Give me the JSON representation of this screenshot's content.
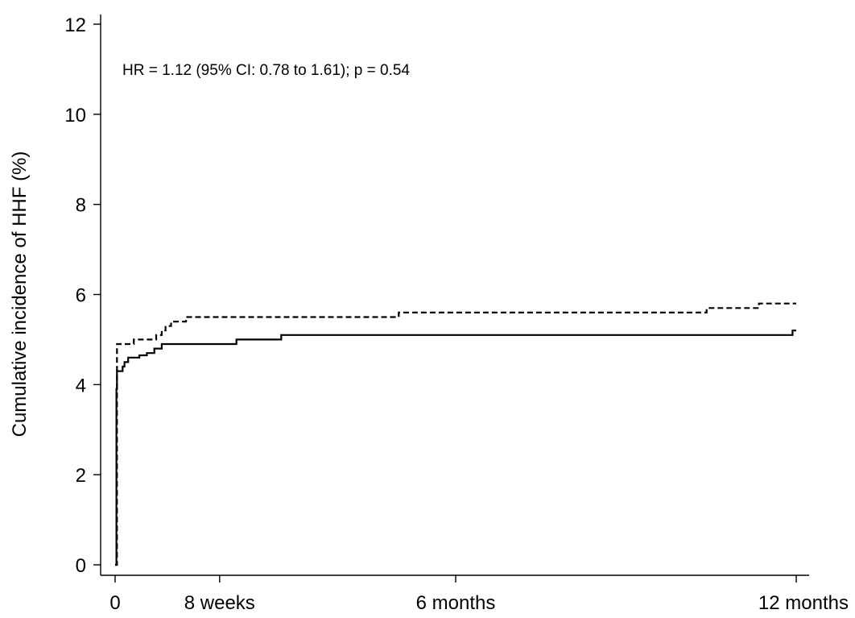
{
  "chart_data": {
    "type": "line",
    "title": "",
    "xlabel": "",
    "ylabel": "Cumulative incidence of HHF (%)",
    "annotation": "HR = 1.12 (95% CI: 0.78 to 1.61); p = 0.54",
    "xlim": [
      0,
      365
    ],
    "ylim": [
      0,
      12
    ],
    "x_ticks": [
      {
        "value": 0,
        "label": "0"
      },
      {
        "value": 56,
        "label": "8 weeks"
      },
      {
        "value": 182.5,
        "label": "6 months"
      },
      {
        "value": 365,
        "label": "12 months"
      }
    ],
    "y_ticks": [
      0,
      2,
      4,
      6,
      8,
      10,
      12
    ],
    "grid": false,
    "legend": "none",
    "series": [
      {
        "style": "dashed",
        "color": "#000000",
        "points": [
          [
            0,
            0
          ],
          [
            1,
            4.9
          ],
          [
            8,
            4.9
          ],
          [
            10,
            5.0
          ],
          [
            19,
            5.0
          ],
          [
            22,
            5.1
          ],
          [
            25,
            5.2
          ],
          [
            27,
            5.3
          ],
          [
            30,
            5.4
          ],
          [
            36,
            5.4
          ],
          [
            38,
            5.5
          ],
          [
            150,
            5.5
          ],
          [
            152,
            5.6
          ],
          [
            315,
            5.6
          ],
          [
            317,
            5.7
          ],
          [
            344,
            5.7
          ],
          [
            345,
            5.8
          ],
          [
            365,
            5.8
          ]
        ]
      },
      {
        "style": "solid",
        "color": "#000000",
        "points": [
          [
            0,
            0
          ],
          [
            0.7,
            3.9
          ],
          [
            1,
            4.3
          ],
          [
            3,
            4.3
          ],
          [
            4,
            4.4
          ],
          [
            5,
            4.5
          ],
          [
            7,
            4.6
          ],
          [
            12,
            4.6
          ],
          [
            13,
            4.65
          ],
          [
            17,
            4.7
          ],
          [
            21,
            4.8
          ],
          [
            25,
            4.9
          ],
          [
            63,
            4.9
          ],
          [
            65,
            5.0
          ],
          [
            88,
            5.0
          ],
          [
            89,
            5.1
          ],
          [
            362,
            5.1
          ],
          [
            363,
            5.2
          ],
          [
            365,
            5.2
          ]
        ]
      }
    ]
  }
}
